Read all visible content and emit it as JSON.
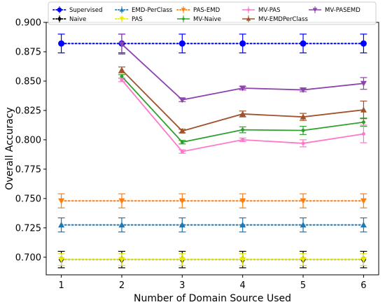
{
  "chart_data": {
    "type": "line",
    "xlabel": "Number of Domain Source Used",
    "ylabel": "Overall Accuracy",
    "x": [
      1,
      2,
      3,
      4,
      5,
      6
    ],
    "xlim": [
      0.75,
      6.25
    ],
    "ylim": [
      0.685,
      0.9
    ],
    "yticks": [
      0.7,
      0.725,
      0.75,
      0.775,
      0.8,
      0.825,
      0.85,
      0.875,
      0.9
    ],
    "ytick_labels": [
      "0.700",
      "0.725",
      "0.750",
      "0.775",
      "0.800",
      "0.825",
      "0.850",
      "0.875",
      "0.900"
    ],
    "xtick_labels": [
      "1",
      "2",
      "3",
      "4",
      "5",
      "6"
    ],
    "grid": false,
    "legend": {
      "placement": "top",
      "columns": 5
    },
    "series": [
      {
        "name": "Supervised",
        "color": "#0000ff",
        "style": "dotted",
        "marker": "circle",
        "x": [
          1,
          2,
          3,
          4,
          5,
          6
        ],
        "y": [
          0.882,
          0.882,
          0.882,
          0.882,
          0.882,
          0.882
        ],
        "err": [
          0.008,
          0.008,
          0.008,
          0.008,
          0.008,
          0.008
        ]
      },
      {
        "name": "Naive",
        "color": "#000000",
        "style": "dotted",
        "marker": "diamond",
        "x": [
          1,
          2,
          3,
          4,
          5,
          6
        ],
        "y": [
          0.698,
          0.698,
          0.698,
          0.698,
          0.698,
          0.698
        ],
        "err": [
          0.007,
          0.007,
          0.007,
          0.007,
          0.007,
          0.007
        ]
      },
      {
        "name": "EMD-PerClass",
        "color": "#1f77b4",
        "style": "dotted",
        "marker": "triangle-up",
        "x": [
          1,
          2,
          3,
          4,
          5,
          6
        ],
        "y": [
          0.7275,
          0.7275,
          0.7275,
          0.7275,
          0.7275,
          0.7275
        ],
        "err": [
          0.006,
          0.006,
          0.006,
          0.006,
          0.006,
          0.006
        ]
      },
      {
        "name": "PAS",
        "color": "#e8e800",
        "style": "dotted",
        "marker": "triangle-down",
        "x": [
          1,
          2,
          3,
          4,
          5,
          6
        ],
        "y": [
          0.698,
          0.698,
          0.698,
          0.698,
          0.698,
          0.698
        ],
        "err": [
          0.005,
          0.005,
          0.005,
          0.005,
          0.005,
          0.005
        ]
      },
      {
        "name": "PAS-EMD",
        "color": "#ff7f0e",
        "style": "dotted",
        "marker": "triangle-down",
        "x": [
          1,
          2,
          3,
          4,
          5,
          6
        ],
        "y": [
          0.748,
          0.748,
          0.748,
          0.748,
          0.748,
          0.748
        ],
        "err": [
          0.006,
          0.006,
          0.006,
          0.006,
          0.006,
          0.006
        ]
      },
      {
        "name": "MV-Naive",
        "color": "#2ca02c",
        "style": "solid",
        "marker": "dot",
        "x": [
          2,
          3,
          4,
          5,
          6
        ],
        "y": [
          0.854,
          0.798,
          0.8085,
          0.808,
          0.815
        ],
        "err": [
          0.0015,
          0.0015,
          0.0025,
          0.0035,
          0.0035
        ]
      },
      {
        "name": "MV-PAS",
        "color": "#ff77c8",
        "style": "solid",
        "marker": "dot",
        "x": [
          2,
          3,
          4,
          5,
          6
        ],
        "y": [
          0.851,
          0.79,
          0.8,
          0.797,
          0.805
        ],
        "err": [
          0.0015,
          0.0015,
          0.0015,
          0.003,
          0.0075
        ]
      },
      {
        "name": "MV-EMDPerClass",
        "color": "#a0522d",
        "style": "solid",
        "marker": "triangle-up",
        "x": [
          2,
          3,
          4,
          5,
          6
        ],
        "y": [
          0.8595,
          0.8075,
          0.822,
          0.8195,
          0.8255
        ],
        "err": [
          0.0025,
          0.0015,
          0.0025,
          0.003,
          0.0075
        ]
      },
      {
        "name": "MV-PASEMD",
        "color": "#8e44ad",
        "style": "solid",
        "marker": "triangle-down",
        "x": [
          2,
          3,
          4,
          5,
          6
        ],
        "y": [
          0.8815,
          0.834,
          0.844,
          0.8425,
          0.848
        ],
        "err": [
          0.0085,
          0.0015,
          0.0015,
          0.0015,
          0.005
        ]
      }
    ]
  }
}
